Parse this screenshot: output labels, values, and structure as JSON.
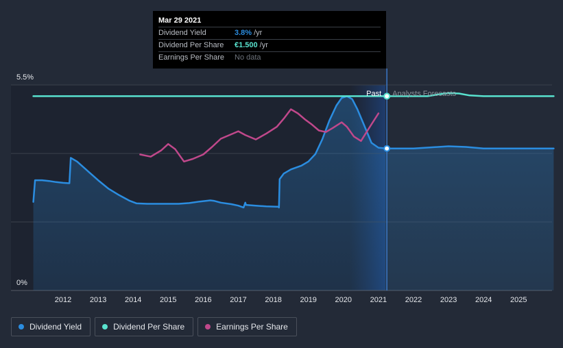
{
  "chart_data": {
    "type": "line",
    "title": "",
    "xlabel": "",
    "ylabel": "",
    "x_ticks": [
      "2012",
      "2013",
      "2014",
      "2015",
      "2016",
      "2017",
      "2018",
      "2019",
      "2020",
      "2021",
      "2022",
      "2023",
      "2024",
      "2025"
    ],
    "y_tick_labels": [
      "5.5%",
      "0%"
    ],
    "ylim": [
      0,
      5.5
    ],
    "xlim": [
      2011.1,
      2026.0
    ],
    "past_label": "Past",
    "forecast_label": "Analysts Forecasts",
    "divider_x": 2021.24,
    "series": [
      {
        "name": "Dividend Yield",
        "color": "#2b8de0",
        "area": true,
        "points": [
          [
            2011.15,
            2.37
          ],
          [
            2011.2,
            2.95
          ],
          [
            2011.4,
            2.95
          ],
          [
            2011.6,
            2.93
          ],
          [
            2011.8,
            2.9
          ],
          [
            2012.0,
            2.88
          ],
          [
            2012.18,
            2.87
          ],
          [
            2012.22,
            3.55
          ],
          [
            2012.4,
            3.45
          ],
          [
            2012.7,
            3.2
          ],
          [
            2013.0,
            2.95
          ],
          [
            2013.3,
            2.72
          ],
          [
            2013.6,
            2.55
          ],
          [
            2013.9,
            2.4
          ],
          [
            2014.1,
            2.33
          ],
          [
            2014.4,
            2.32
          ],
          [
            2014.8,
            2.32
          ],
          [
            2015.3,
            2.32
          ],
          [
            2015.6,
            2.34
          ],
          [
            2015.9,
            2.38
          ],
          [
            2016.2,
            2.41
          ],
          [
            2016.3,
            2.4
          ],
          [
            2016.5,
            2.35
          ],
          [
            2016.8,
            2.31
          ],
          [
            2017.0,
            2.27
          ],
          [
            2017.15,
            2.22
          ],
          [
            2017.2,
            2.35
          ],
          [
            2017.22,
            2.29
          ],
          [
            2017.5,
            2.27
          ],
          [
            2017.8,
            2.25
          ],
          [
            2018.1,
            2.24
          ],
          [
            2018.14,
            2.24
          ],
          [
            2018.16,
            2.22
          ],
          [
            2018.18,
            2.98
          ],
          [
            2018.3,
            3.13
          ],
          [
            2018.5,
            3.24
          ],
          [
            2018.8,
            3.34
          ],
          [
            2019.0,
            3.45
          ],
          [
            2019.2,
            3.65
          ],
          [
            2019.4,
            4.05
          ],
          [
            2019.6,
            4.55
          ],
          [
            2019.8,
            4.95
          ],
          [
            2019.95,
            5.15
          ],
          [
            2020.1,
            5.2
          ],
          [
            2020.25,
            5.12
          ],
          [
            2020.4,
            4.85
          ],
          [
            2020.6,
            4.4
          ],
          [
            2020.8,
            3.95
          ],
          [
            2021.0,
            3.82
          ],
          [
            2021.24,
            3.8
          ],
          [
            2022.0,
            3.8
          ],
          [
            2022.5,
            3.83
          ],
          [
            2023.0,
            3.86
          ],
          [
            2023.5,
            3.84
          ],
          [
            2024.0,
            3.8
          ],
          [
            2025.0,
            3.8
          ],
          [
            2026.0,
            3.8
          ]
        ]
      },
      {
        "name": "Dividend Per Share",
        "color": "#59e3cf",
        "area": false,
        "points": [
          [
            2011.15,
            5.2
          ],
          [
            2014.0,
            5.2
          ],
          [
            2017.0,
            5.2
          ],
          [
            2020.0,
            5.2
          ],
          [
            2021.24,
            5.2
          ],
          [
            2022.0,
            5.2
          ],
          [
            2022.4,
            5.2
          ],
          [
            2022.8,
            5.26
          ],
          [
            2023.0,
            5.28
          ],
          [
            2023.3,
            5.27
          ],
          [
            2023.6,
            5.22
          ],
          [
            2024.0,
            5.2
          ],
          [
            2025.0,
            5.2
          ],
          [
            2026.0,
            5.2
          ]
        ]
      },
      {
        "name": "Earnings Per Share",
        "color": "#c0488b",
        "area": false,
        "points": [
          [
            2014.2,
            3.64
          ],
          [
            2014.5,
            3.58
          ],
          [
            2014.8,
            3.75
          ],
          [
            2015.0,
            3.92
          ],
          [
            2015.2,
            3.78
          ],
          [
            2015.45,
            3.45
          ],
          [
            2015.7,
            3.52
          ],
          [
            2016.0,
            3.64
          ],
          [
            2016.25,
            3.84
          ],
          [
            2016.5,
            4.06
          ],
          [
            2016.8,
            4.18
          ],
          [
            2017.0,
            4.26
          ],
          [
            2017.2,
            4.16
          ],
          [
            2017.5,
            4.04
          ],
          [
            2017.8,
            4.2
          ],
          [
            2018.1,
            4.38
          ],
          [
            2018.3,
            4.6
          ],
          [
            2018.5,
            4.85
          ],
          [
            2018.7,
            4.74
          ],
          [
            2018.9,
            4.58
          ],
          [
            2019.1,
            4.44
          ],
          [
            2019.3,
            4.28
          ],
          [
            2019.5,
            4.24
          ],
          [
            2019.7,
            4.35
          ],
          [
            2019.95,
            4.5
          ],
          [
            2020.1,
            4.38
          ],
          [
            2020.3,
            4.12
          ],
          [
            2020.5,
            4.0
          ],
          [
            2020.7,
            4.3
          ],
          [
            2021.0,
            4.74
          ]
        ]
      }
    ]
  },
  "tooltip": {
    "date": "Mar 29 2021",
    "rows": [
      {
        "name": "Dividend Yield",
        "value": "3.8%",
        "unit": "/yr",
        "color": "#2b8de0"
      },
      {
        "name": "Dividend Per Share",
        "value": "€1.500",
        "unit": "/yr",
        "color": "#59e3cf"
      },
      {
        "name": "Earnings Per Share",
        "value": "No data",
        "unit": "",
        "color": "#6d737c"
      }
    ]
  },
  "legend": [
    {
      "label": "Dividend Yield",
      "color": "#2b8de0"
    },
    {
      "label": "Dividend Per Share",
      "color": "#59e3cf"
    },
    {
      "label": "Earnings Per Share",
      "color": "#c0488b"
    }
  ]
}
